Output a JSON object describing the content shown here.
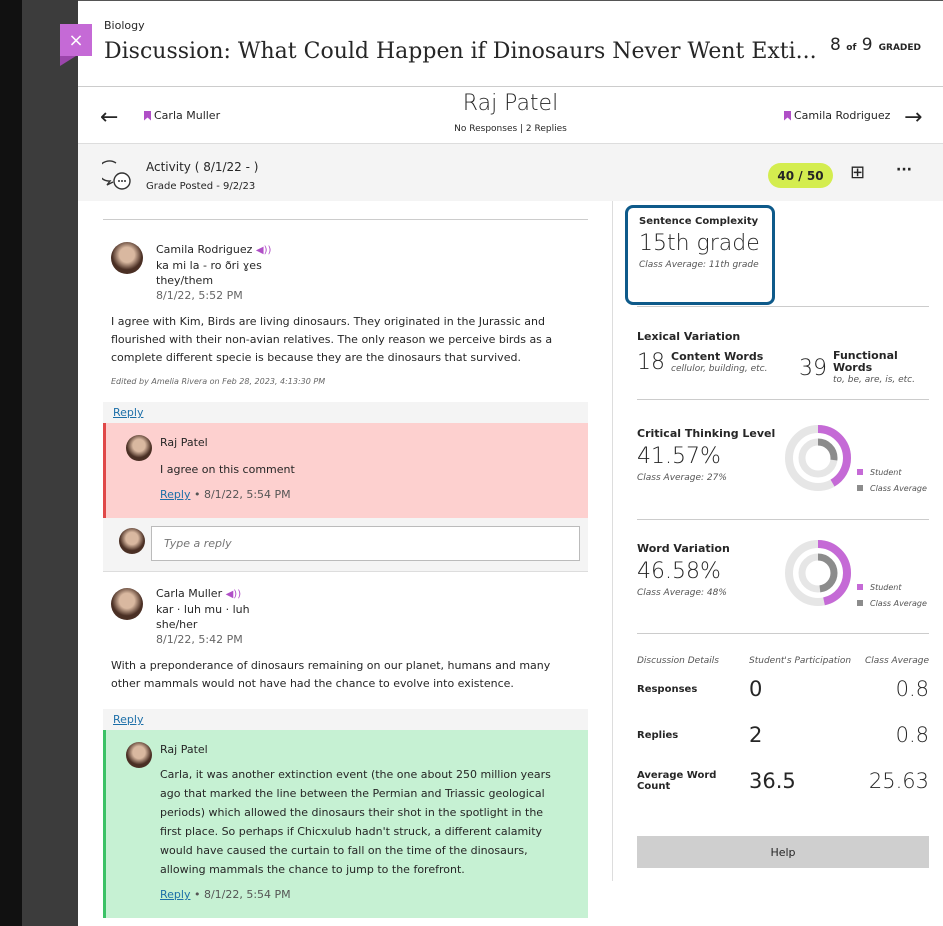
{
  "header": {
    "course": "Biology",
    "title": "Discussion: What Could Happen if Dinosaurs Never Went Exti...",
    "graded_current": "8",
    "graded_of": "of",
    "graded_total": "9",
    "graded_label": "GRADED",
    "close_icon": "×"
  },
  "nav": {
    "prev_name": "Carla Muller",
    "next_name": "Camila Rodriguez",
    "student": "Raj Patel",
    "summary": "No Responses | 2 Replies",
    "prev_icon": "←",
    "next_icon": "→"
  },
  "activity": {
    "title": "Activity ( 8/1/22 - )",
    "grade_posted": "Grade Posted - 9/2/23",
    "score": "40 / 50",
    "more": "···",
    "feedback_icon": "⊞"
  },
  "posts": [
    {
      "author": "Camila Rodriguez",
      "pronunciation": "ka mi la - ro ðri ɣes",
      "pronouns": "they/them",
      "date": "8/1/22, 5:52 PM",
      "body": "I agree with Kim, Birds are living dinosaurs. They originated in the Jurassic and flourished with their non-avian relatives. The only reason we perceive birds as a complete different specie is because they are the dinosaurs that survived.",
      "edited": "Edited by Amelia Rivera on Feb 28, 2023, 4:13:30 PM",
      "reply_label": "Reply",
      "reply": {
        "author": "Raj Patel",
        "body": "I agree on this comment",
        "reply_label": "Reply",
        "date": "• 8/1/22, 5:54 PM"
      },
      "reply_placeholder": "Type a reply"
    },
    {
      "author": "Carla Muller",
      "pronunciation": "kar · luh mu · luh",
      "pronouns": "she/her",
      "date": "8/1/22, 5:42 PM",
      "body": "With a preponderance of dinosaurs remaining on our planet, humans and many other mammals would not have had the chance to evolve into existence.",
      "reply_label": "Reply",
      "reply": {
        "author": "Raj Patel",
        "body": "Carla, it was another extinction event (the one about 250 million years ago that marked the line between the Permian and Triassic geological periods) which allowed the dinosaurs their shot in the spotlight in the first place. So perhaps if Chicxulub hadn't struck, a different calamity would have caused the curtain to fall on the time of the dinosaurs, allowing mammals the chance to jump to the forefront.",
        "reply_label": "Reply",
        "date": "• 8/1/22, 5:54 PM"
      }
    }
  ],
  "metrics": {
    "sentence": {
      "label": "Sentence Complexity",
      "value": "15th grade",
      "avg": "Class Average: 11th grade"
    },
    "lexical": {
      "label": "Lexical Variation",
      "content_n": "18",
      "content_label": "Content Words",
      "content_ex": "cellulor, building, etc.",
      "func_n": "39",
      "func_label": "Functional Words",
      "func_ex": "to, be, are, is, etc."
    },
    "critical": {
      "label": "Critical Thinking Level",
      "value": "41.57%",
      "avg": "Class Average: 27%",
      "student_pct": 41.57,
      "class_pct": 27
    },
    "word": {
      "label": "Word Variation",
      "value": "46.58%",
      "avg": "Class Average: 48%",
      "student_pct": 46.58,
      "class_pct": 48
    },
    "legend": {
      "student": "Student",
      "class": "Class Average"
    },
    "colors": {
      "student": "#c56ad6",
      "class": "#8c8c8c",
      "track": "#e6e6e6"
    },
    "details": {
      "headers": [
        "Discussion Details",
        "Student's Participation",
        "Class Average"
      ],
      "rows": [
        [
          "Responses",
          "0",
          "0.8"
        ],
        [
          "Replies",
          "2",
          "0.8"
        ],
        [
          "Average Word Count",
          "36.5",
          "25.63"
        ]
      ]
    },
    "help": "Help"
  }
}
